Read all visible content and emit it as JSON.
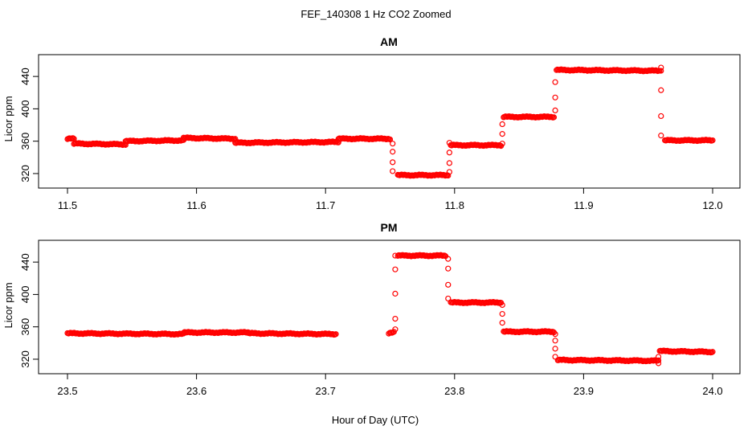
{
  "figure_title": "FEF_140308  1 Hz CO2 Zoomed",
  "xlabel": "Hour of Day (UTC)",
  "ylabel": "Licor ppm",
  "point_color": "#ff0000",
  "marker": "open-circle",
  "chart_data": [
    {
      "type": "scatter",
      "title": "AM",
      "xlim": [
        11.5,
        12.0
      ],
      "ylim": [
        312,
        458
      ],
      "xticks": [
        "11.5",
        "11.6",
        "11.7",
        "11.8",
        "11.9",
        "12.0"
      ],
      "yticks": [
        "320",
        "360",
        "400",
        "440"
      ],
      "segments": [
        {
          "x": [
            11.5,
            11.505
          ],
          "y": [
            363,
            363
          ]
        },
        {
          "x": [
            11.505,
            11.545
          ],
          "y": [
            357,
            356
          ]
        },
        {
          "x": [
            11.545,
            11.59
          ],
          "y": [
            360,
            361
          ]
        },
        {
          "x": [
            11.59,
            11.63
          ],
          "y": [
            364,
            363
          ]
        },
        {
          "x": [
            11.63,
            11.71
          ],
          "y": [
            358,
            359
          ]
        },
        {
          "x": [
            11.71,
            11.75
          ],
          "y": [
            363,
            363
          ]
        },
        {
          "x": [
            11.756,
            11.795
          ],
          "y": [
            318,
            318
          ]
        },
        {
          "x": [
            11.797,
            11.836
          ],
          "y": [
            355,
            355
          ]
        },
        {
          "x": [
            11.838,
            11.877
          ],
          "y": [
            390,
            390
          ]
        },
        {
          "x": [
            11.879,
            11.959
          ],
          "y": [
            448,
            447
          ]
        },
        {
          "x": [
            11.963,
            12.0
          ],
          "y": [
            361,
            361
          ]
        }
      ],
      "transitions": [
        {
          "x": 11.752,
          "y": [
            357,
            347,
            334,
            323
          ]
        },
        {
          "x": 11.796,
          "y": [
            322,
            333,
            346,
            358
          ]
        },
        {
          "x": 11.837,
          "y": [
            357,
            369,
            381
          ]
        },
        {
          "x": 11.878,
          "y": [
            398,
            414,
            433
          ]
        },
        {
          "x": 11.96,
          "y": [
            451,
            447,
            423,
            391,
            367
          ]
        }
      ]
    },
    {
      "type": "scatter",
      "title": "PM",
      "xlim": [
        23.5,
        24.0
      ],
      "ylim": [
        312,
        458
      ],
      "xticks": [
        "23.5",
        "23.6",
        "23.7",
        "23.8",
        "23.9",
        "24.0"
      ],
      "yticks": [
        "320",
        "360",
        "400",
        "440"
      ],
      "segments": [
        {
          "x": [
            23.5,
            23.59
          ],
          "y": [
            352,
            351
          ]
        },
        {
          "x": [
            23.59,
            23.64
          ],
          "y": [
            353,
            353
          ]
        },
        {
          "x": [
            23.64,
            23.708
          ],
          "y": [
            352,
            351
          ]
        },
        {
          "x": [
            23.749,
            23.753
          ],
          "y": [
            352,
            353
          ]
        },
        {
          "x": [
            23.756,
            23.793
          ],
          "y": [
            448,
            448
          ]
        },
        {
          "x": [
            23.797,
            23.836
          ],
          "y": [
            390,
            390
          ]
        },
        {
          "x": [
            23.838,
            23.877
          ],
          "y": [
            354,
            354
          ]
        },
        {
          "x": [
            23.88,
            23.958
          ],
          "y": [
            319,
            318
          ]
        },
        {
          "x": [
            23.959,
            24.0
          ],
          "y": [
            330,
            329
          ]
        }
      ],
      "transitions": [
        {
          "x": 23.754,
          "y": [
            357,
            370,
            401,
            431,
            448
          ]
        },
        {
          "x": 23.795,
          "y": [
            444,
            432,
            412,
            395
          ]
        },
        {
          "x": 23.837,
          "y": [
            387,
            376,
            365
          ]
        },
        {
          "x": 23.878,
          "y": [
            351,
            343,
            333,
            323
          ]
        },
        {
          "x": 23.958,
          "y": [
            323,
            315
          ]
        }
      ]
    }
  ]
}
